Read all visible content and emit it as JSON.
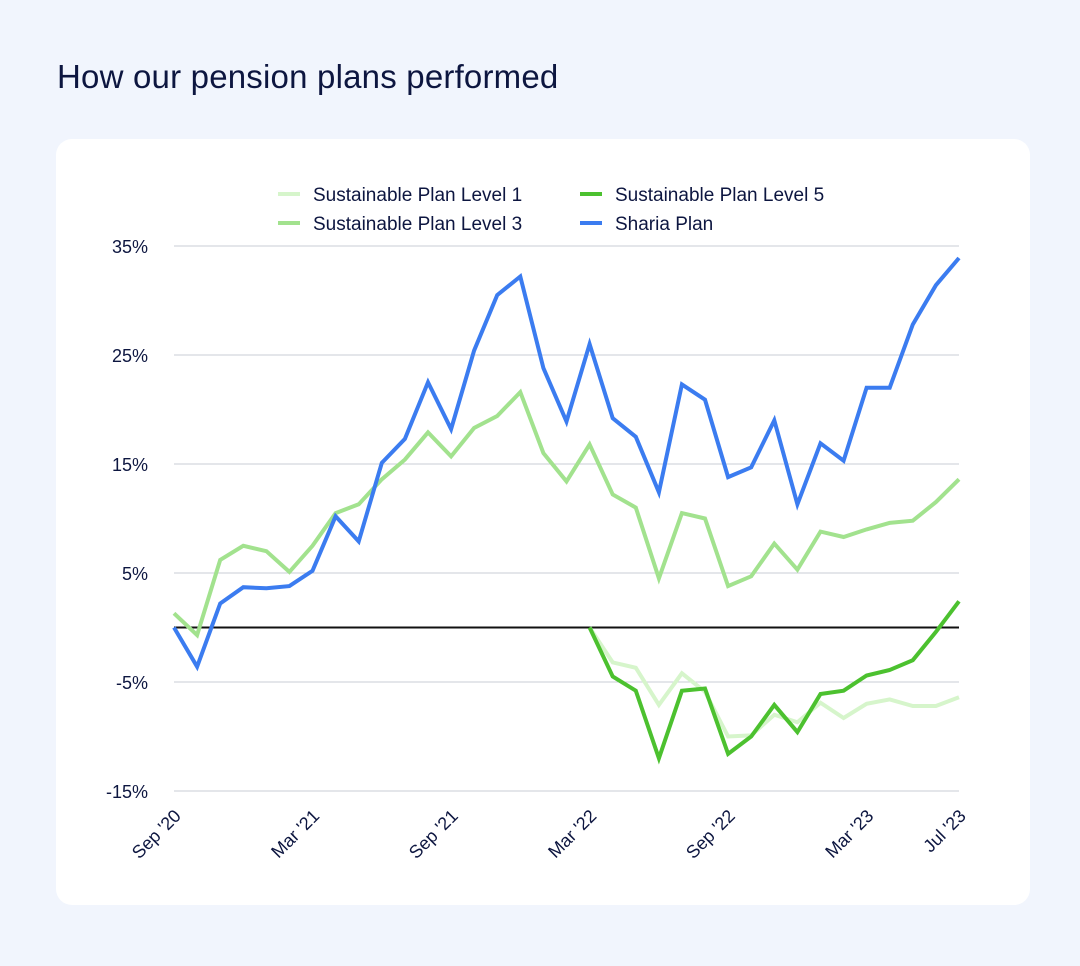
{
  "page": {
    "title": "How our pension plans performed"
  },
  "chart_data": {
    "type": "line",
    "title": "How our pension plans performed",
    "xlabel": "",
    "ylabel": "",
    "x": [
      "Sep '20",
      "Oct '20",
      "Nov '20",
      "Dec '20",
      "Jan '21",
      "Feb '21",
      "Mar '21",
      "Apr '21",
      "May '21",
      "Jun '21",
      "Jul '21",
      "Aug '21",
      "Sep '21",
      "Oct '21",
      "Nov '21",
      "Dec '21",
      "Jan '22",
      "Feb '22",
      "Mar '22",
      "Apr '22",
      "May '22",
      "Jun '22",
      "Jul '22",
      "Aug '22",
      "Sep '22",
      "Oct '22",
      "Nov '22",
      "Dec '22",
      "Jan '23",
      "Feb '23",
      "Mar '23",
      "Apr '23",
      "May '23",
      "Jun '23",
      "Jul '23"
    ],
    "x_ticks": [
      "Sep '20",
      "Mar '21",
      "Sep '21",
      "Mar '22",
      "Sep '22",
      "Mar '23",
      "Jul '23"
    ],
    "y_ticks": [
      "35%",
      "25%",
      "15%",
      "5%",
      "-5%",
      "-15%"
    ],
    "y_tick_values": [
      35,
      25,
      15,
      5,
      -5,
      -15
    ],
    "ylim": [
      -15,
      35
    ],
    "grid": true,
    "legend_position": "top",
    "series": [
      {
        "name": "Sustainable Plan Level 1",
        "color": "#d6f5cb",
        "values": [
          null,
          null,
          null,
          null,
          null,
          null,
          null,
          null,
          null,
          null,
          null,
          null,
          null,
          null,
          null,
          null,
          null,
          null,
          0.0,
          -3.2,
          -3.7,
          -7.1,
          -4.2,
          -5.9,
          -10.0,
          -9.9,
          -8.0,
          -8.7,
          -6.9,
          -8.3,
          -7.0,
          -6.6,
          -7.2,
          -7.2,
          -6.4
        ]
      },
      {
        "name": "Sustainable Plan Level 3",
        "color": "#a2e28e",
        "values": [
          1.3,
          -0.7,
          6.2,
          7.5,
          7.0,
          5.1,
          7.5,
          10.5,
          11.3,
          13.6,
          15.4,
          17.9,
          15.7,
          18.3,
          19.4,
          21.6,
          16.0,
          13.4,
          16.8,
          12.2,
          11.0,
          4.5,
          10.5,
          10.0,
          3.8,
          4.7,
          7.7,
          5.3,
          8.8,
          8.3,
          9.0,
          9.6,
          9.8,
          11.5,
          13.6
        ]
      },
      {
        "name": "Sustainable Plan Level 5",
        "color": "#4cc12f",
        "values": [
          null,
          null,
          null,
          null,
          null,
          null,
          null,
          null,
          null,
          null,
          null,
          null,
          null,
          null,
          null,
          null,
          null,
          null,
          0.0,
          -4.5,
          -5.8,
          -12.0,
          -5.8,
          -5.6,
          -11.6,
          -10.0,
          -7.1,
          -9.6,
          -6.1,
          -5.8,
          -4.4,
          -3.9,
          -3.0,
          -0.4,
          2.4
        ]
      },
      {
        "name": "Sharia Plan",
        "color": "#3b7cf0",
        "values": [
          0.0,
          -3.6,
          2.2,
          3.7,
          3.6,
          3.8,
          5.2,
          10.2,
          7.9,
          15.1,
          17.3,
          22.5,
          18.2,
          25.4,
          30.5,
          32.2,
          23.8,
          18.9,
          26.0,
          19.2,
          17.5,
          12.4,
          22.3,
          20.9,
          13.8,
          14.7,
          19.0,
          11.3,
          16.9,
          15.3,
          22.0,
          22.0,
          27.8,
          31.4,
          33.9
        ]
      }
    ]
  }
}
